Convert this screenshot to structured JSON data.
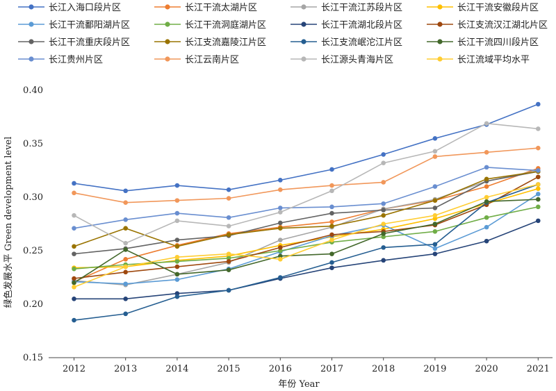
{
  "chart_data": {
    "type": "line",
    "title": "",
    "xlabel": "年份 Year",
    "ylabel": "绿色发展水平 Green development level",
    "x": [
      "2012",
      "2013",
      "2014",
      "2015",
      "2016",
      "2017",
      "2018",
      "2019",
      "2020",
      "2021"
    ],
    "y_ticks": [
      "0.15",
      "0.20",
      "0.25",
      "0.30",
      "0.35",
      "0.40"
    ],
    "ylim": [
      0.15,
      0.4
    ],
    "grid": false,
    "legend_position": "top",
    "series": [
      {
        "name": "长江入海口段片区",
        "color": "#4472c4",
        "values": [
          0.313,
          0.306,
          0.311,
          0.307,
          0.316,
          0.326,
          0.34,
          0.355,
          0.368,
          0.387
        ]
      },
      {
        "name": "长江干流太湖片区",
        "color": "#ed7d31",
        "values": [
          0.221,
          0.242,
          0.255,
          0.266,
          0.272,
          0.277,
          0.289,
          0.297,
          0.31,
          0.327
        ]
      },
      {
        "name": "长江干流江苏段片区",
        "color": "#a5a5a5",
        "values": [
          0.222,
          0.218,
          0.228,
          0.239,
          0.26,
          0.272,
          0.289,
          0.298,
          0.315,
          0.325
        ]
      },
      {
        "name": "长江干流安徽段片区",
        "color": "#ffc000",
        "values": [
          0.234,
          0.235,
          0.241,
          0.245,
          0.255,
          0.263,
          0.27,
          0.28,
          0.294,
          0.308
        ]
      },
      {
        "name": "长江干流鄱阳湖片区",
        "color": "#5b9bd5",
        "values": [
          0.221,
          0.219,
          0.223,
          0.233,
          0.249,
          0.264,
          0.274,
          0.252,
          0.272,
          0.303
        ]
      },
      {
        "name": "长江干流洞庭湖片区",
        "color": "#70ad47",
        "values": [
          0.233,
          0.237,
          0.24,
          0.243,
          0.25,
          0.258,
          0.263,
          0.268,
          0.281,
          0.291
        ]
      },
      {
        "name": "长江干流湖北段片区",
        "color": "#264478",
        "values": [
          0.205,
          0.205,
          0.21,
          0.213,
          0.224,
          0.234,
          0.241,
          0.247,
          0.259,
          0.278
        ]
      },
      {
        "name": "长江支流汉江湖北片区",
        "color": "#9e480e",
        "values": [
          0.224,
          0.23,
          0.235,
          0.24,
          0.253,
          0.265,
          0.268,
          0.274,
          0.293,
          0.319
        ]
      },
      {
        "name": "长江干流重庆段片区",
        "color": "#636363",
        "values": [
          0.247,
          0.252,
          0.26,
          0.264,
          0.276,
          0.285,
          0.288,
          0.29,
          0.315,
          0.324
        ]
      },
      {
        "name": "长江支流嘉陵江片区",
        "color": "#997300",
        "values": [
          0.254,
          0.271,
          0.254,
          0.265,
          0.271,
          0.273,
          0.283,
          0.297,
          0.317,
          0.324
        ]
      },
      {
        "name": "长江支流岷沱江片区",
        "color": "#255e91",
        "values": [
          0.185,
          0.191,
          0.207,
          0.213,
          0.225,
          0.239,
          0.253,
          0.256,
          0.295,
          0.312
        ]
      },
      {
        "name": "长江干流四川段片区",
        "color": "#43682b",
        "values": [
          0.22,
          0.251,
          0.228,
          0.232,
          0.245,
          0.247,
          0.266,
          0.275,
          0.296,
          0.298
        ]
      },
      {
        "name": "长江贵州片区",
        "color": "#698ed0",
        "values": [
          0.271,
          0.279,
          0.285,
          0.281,
          0.29,
          0.291,
          0.294,
          0.31,
          0.328,
          0.325
        ]
      },
      {
        "name": "长江云南片区",
        "color": "#f1975a",
        "values": [
          0.304,
          0.295,
          0.297,
          0.299,
          0.307,
          0.311,
          0.314,
          0.338,
          0.342,
          0.346
        ]
      },
      {
        "name": "长江源头青海片区",
        "color": "#b7b7b7",
        "values": [
          0.283,
          0.257,
          0.278,
          0.273,
          0.286,
          0.306,
          0.332,
          0.343,
          0.369,
          0.364
        ]
      },
      {
        "name": "长江流域平均水平",
        "color": "#ffcd33",
        "values": [
          0.216,
          0.235,
          0.244,
          0.247,
          0.242,
          0.26,
          0.275,
          0.283,
          0.3,
          0.312
        ]
      }
    ]
  }
}
